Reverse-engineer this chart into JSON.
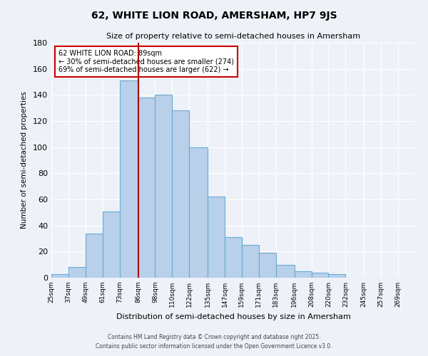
{
  "title": "62, WHITE LION ROAD, AMERSHAM, HP7 9JS",
  "subtitle": "Size of property relative to semi-detached houses in Amersham",
  "xlabel": "Distribution of semi-detached houses by size in Amersham",
  "ylabel": "Number of semi-detached properties",
  "bar_labels": [
    "25sqm",
    "37sqm",
    "49sqm",
    "61sqm",
    "73sqm",
    "86sqm",
    "98sqm",
    "110sqm",
    "122sqm",
    "135sqm",
    "147sqm",
    "159sqm",
    "171sqm",
    "183sqm",
    "196sqm",
    "208sqm",
    "220sqm",
    "232sqm",
    "245sqm",
    "257sqm",
    "269sqm"
  ],
  "bar_values": [
    3,
    8,
    34,
    51,
    151,
    138,
    140,
    128,
    100,
    62,
    31,
    25,
    19,
    10,
    5,
    4,
    3,
    0,
    0,
    0,
    0
  ],
  "bar_color": "#b8d0ea",
  "bar_edge_color": "#6aaad4",
  "property_line_x": 86,
  "property_line_label": "62 WHITE LION ROAD: 89sqm",
  "annotation_line1": "← 30% of semi-detached houses are smaller (274)",
  "annotation_line2": "69% of semi-detached houses are larger (622) →",
  "ylim": [
    0,
    180
  ],
  "yticks": [
    0,
    20,
    40,
    60,
    80,
    100,
    120,
    140,
    160,
    180
  ],
  "bin_edges": [
    25,
    37,
    49,
    61,
    73,
    86,
    98,
    110,
    122,
    135,
    147,
    159,
    171,
    183,
    196,
    208,
    220,
    232,
    245,
    257,
    269,
    281
  ],
  "footer_line1": "Contains HM Land Registry data © Crown copyright and database right 2025.",
  "footer_line2": "Contains public sector information licensed under the Open Government Licence v3.0.",
  "bg_color": "#eef2f8",
  "grid_color": "#ffffff",
  "annotation_box_color": "white",
  "annotation_box_edge_color": "#cc0000",
  "red_line_color": "#aa0000"
}
